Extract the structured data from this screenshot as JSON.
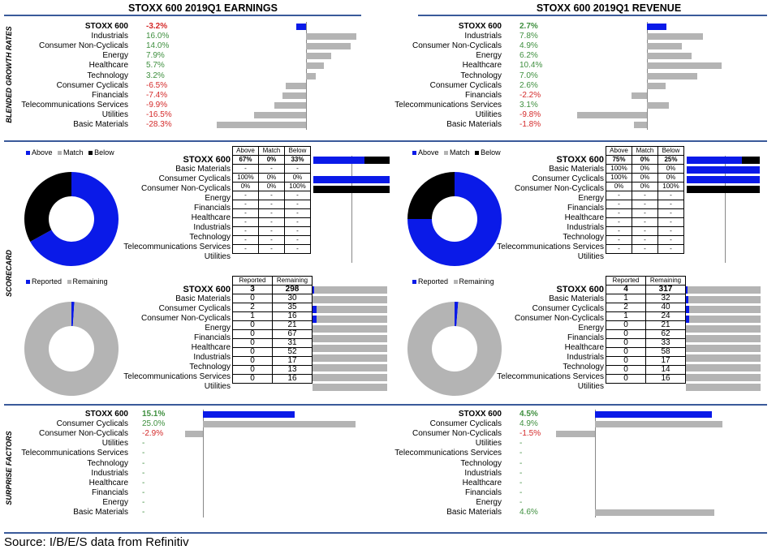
{
  "earnings_title": "STOXX 600 2019Q1 EARNINGS",
  "revenue_title": "STOXX 600 2019Q1 REVENUE",
  "section_labels": {
    "growth": "BLENDED GROWTH RATES",
    "scorecard": "SCORECARD",
    "surprise": "SURPRISE FACTORS"
  },
  "source": "Source: I/B/E/S data from Refinitiv",
  "legend": {
    "above": "Above",
    "match": "Match",
    "below": "Below",
    "reported": "Reported",
    "remaining": "Remaining"
  },
  "colors": {
    "blue": "#0a1ae8",
    "gray": "#b4b4b4",
    "black": "#000000",
    "positive": "#3f8f3f",
    "negative": "#d42a2a",
    "rule": "#3a5a9a"
  },
  "chart_data": [
    {
      "type": "bar",
      "title": "STOXX 600 2019Q1 EARNINGS - Blended Growth Rates",
      "categories": [
        "STOXX 600",
        "Industrials",
        "Consumer Non-Cyclicals",
        "Energy",
        "Healthcare",
        "Technology",
        "Consumer Cyclicals",
        "Financials",
        "Telecommunications Services",
        "Utilities",
        "Basic Materials"
      ],
      "labels": [
        "-3.2%",
        "16.0%",
        "14.0%",
        "7.9%",
        "5.7%",
        "3.2%",
        "-6.5%",
        "-7.4%",
        "-9.9%",
        "-16.5%",
        "-28.3%"
      ],
      "values": [
        -3.2,
        16.0,
        14.0,
        7.9,
        5.7,
        3.2,
        -6.5,
        -7.4,
        -9.9,
        -16.5,
        -28.3
      ]
    },
    {
      "type": "bar",
      "title": "STOXX 600 2019Q1 REVENUE - Blended Growth Rates",
      "categories": [
        "STOXX 600",
        "Industrials",
        "Consumer Non-Cyclicals",
        "Energy",
        "Healthcare",
        "Technology",
        "Consumer Cyclicals",
        "Financials",
        "Telecommunications Services",
        "Utilities",
        "Basic Materials"
      ],
      "labels": [
        "2.7%",
        "7.8%",
        "4.9%",
        "6.2%",
        "10.4%",
        "7.0%",
        "2.6%",
        "-2.2%",
        "3.1%",
        "-9.8%",
        "-1.8%"
      ],
      "values": [
        2.7,
        7.8,
        4.9,
        6.2,
        10.4,
        7.0,
        2.6,
        -2.2,
        3.1,
        -9.8,
        -1.8
      ]
    },
    {
      "type": "table",
      "title": "Earnings Scorecard (Above / Match / Below)",
      "categories": [
        "STOXX 600",
        "Basic Materials",
        "Consumer Cyclicals",
        "Consumer Non-Cyclicals",
        "Energy",
        "Financials",
        "Healthcare",
        "Industrials",
        "Technology",
        "Telecommunications Services",
        "Utilities"
      ],
      "columns": [
        "Above",
        "Match",
        "Below"
      ],
      "rows": [
        [
          "67%",
          "0%",
          "33%"
        ],
        [
          "-",
          "-",
          "-"
        ],
        [
          "100%",
          "0%",
          "0%"
        ],
        [
          "0%",
          "0%",
          "100%"
        ],
        [
          "-",
          "-",
          "-"
        ],
        [
          "-",
          "-",
          "-"
        ],
        [
          "-",
          "-",
          "-"
        ],
        [
          "-",
          "-",
          "-"
        ],
        [
          "-",
          "-",
          "-"
        ],
        [
          "-",
          "-",
          "-"
        ],
        [
          "-",
          "-",
          "-"
        ]
      ],
      "bars": [
        [
          67,
          0,
          33
        ],
        null,
        [
          100,
          0,
          0
        ],
        [
          0,
          0,
          100
        ],
        null,
        null,
        null,
        null,
        null,
        null,
        null
      ],
      "donut": {
        "above": 67,
        "match": 0,
        "below": 33
      }
    },
    {
      "type": "table",
      "title": "Revenue Scorecard (Above / Match / Below)",
      "categories": [
        "STOXX 600",
        "Basic Materials",
        "Consumer Cyclicals",
        "Consumer Non-Cyclicals",
        "Energy",
        "Financials",
        "Healthcare",
        "Industrials",
        "Technology",
        "Telecommunications Services",
        "Utilities"
      ],
      "columns": [
        "Above",
        "Match",
        "Below"
      ],
      "rows": [
        [
          "75%",
          "0%",
          "25%"
        ],
        [
          "100%",
          "0%",
          "0%"
        ],
        [
          "100%",
          "0%",
          "0%"
        ],
        [
          "0%",
          "0%",
          "100%"
        ],
        [
          "-",
          "-",
          "-"
        ],
        [
          "-",
          "-",
          "-"
        ],
        [
          "-",
          "-",
          "-"
        ],
        [
          "-",
          "-",
          "-"
        ],
        [
          "-",
          "-",
          "-"
        ],
        [
          "-",
          "-",
          "-"
        ],
        [
          "-",
          "-",
          "-"
        ]
      ],
      "bars": [
        [
          75,
          0,
          25
        ],
        [
          100,
          0,
          0
        ],
        [
          100,
          0,
          0
        ],
        [
          0,
          0,
          100
        ],
        null,
        null,
        null,
        null,
        null,
        null,
        null
      ],
      "donut": {
        "above": 75,
        "match": 0,
        "below": 25
      }
    },
    {
      "type": "table",
      "title": "Earnings Reported / Remaining",
      "categories": [
        "STOXX 600",
        "Basic Materials",
        "Consumer Cyclicals",
        "Consumer Non-Cyclicals",
        "Energy",
        "Financials",
        "Healthcare",
        "Industrials",
        "Technology",
        "Telecommunications Services",
        "Utilities"
      ],
      "columns": [
        "Reported",
        "Remaining"
      ],
      "rows": [
        [
          3,
          298
        ],
        [
          0,
          30
        ],
        [
          2,
          35
        ],
        [
          1,
          16
        ],
        [
          0,
          21
        ],
        [
          0,
          67
        ],
        [
          0,
          31
        ],
        [
          0,
          52
        ],
        [
          0,
          17
        ],
        [
          0,
          13
        ],
        [
          0,
          16
        ]
      ]
    },
    {
      "type": "table",
      "title": "Revenue Reported / Remaining",
      "categories": [
        "STOXX 600",
        "Basic Materials",
        "Consumer Cyclicals",
        "Consumer Non-Cyclicals",
        "Energy",
        "Financials",
        "Healthcare",
        "Industrials",
        "Technology",
        "Telecommunications Services",
        "Utilities"
      ],
      "columns": [
        "Reported",
        "Remaining"
      ],
      "rows": [
        [
          4,
          317
        ],
        [
          1,
          32
        ],
        [
          2,
          40
        ],
        [
          1,
          24
        ],
        [
          0,
          21
        ],
        [
          0,
          62
        ],
        [
          0,
          33
        ],
        [
          0,
          58
        ],
        [
          0,
          17
        ],
        [
          0,
          14
        ],
        [
          0,
          16
        ]
      ]
    },
    {
      "type": "bar",
      "title": "Earnings Surprise Factors",
      "categories": [
        "STOXX 600",
        "Consumer Cyclicals",
        "Consumer Non-Cyclicals",
        "Utilities",
        "Telecommunications Services",
        "Technology",
        "Industrials",
        "Healthcare",
        "Financials",
        "Energy",
        "Basic Materials"
      ],
      "labels": [
        "15.1%",
        "25.0%",
        "-2.9%",
        "-",
        "-",
        "-",
        "-",
        "-",
        "-",
        "-",
        "-"
      ],
      "values": [
        15.1,
        25.0,
        -2.9,
        null,
        null,
        null,
        null,
        null,
        null,
        null,
        null
      ]
    },
    {
      "type": "bar",
      "title": "Revenue Surprise Factors",
      "categories": [
        "STOXX 600",
        "Consumer Cyclicals",
        "Consumer Non-Cyclicals",
        "Utilities",
        "Telecommunications Services",
        "Technology",
        "Industrials",
        "Healthcare",
        "Financials",
        "Energy",
        "Basic Materials"
      ],
      "labels": [
        "4.5%",
        "4.9%",
        "-1.5%",
        "-",
        "-",
        "-",
        "-",
        "-",
        "-",
        "-",
        "4.6%"
      ],
      "values": [
        4.5,
        4.9,
        -1.5,
        null,
        null,
        null,
        null,
        null,
        null,
        null,
        4.6
      ]
    }
  ]
}
